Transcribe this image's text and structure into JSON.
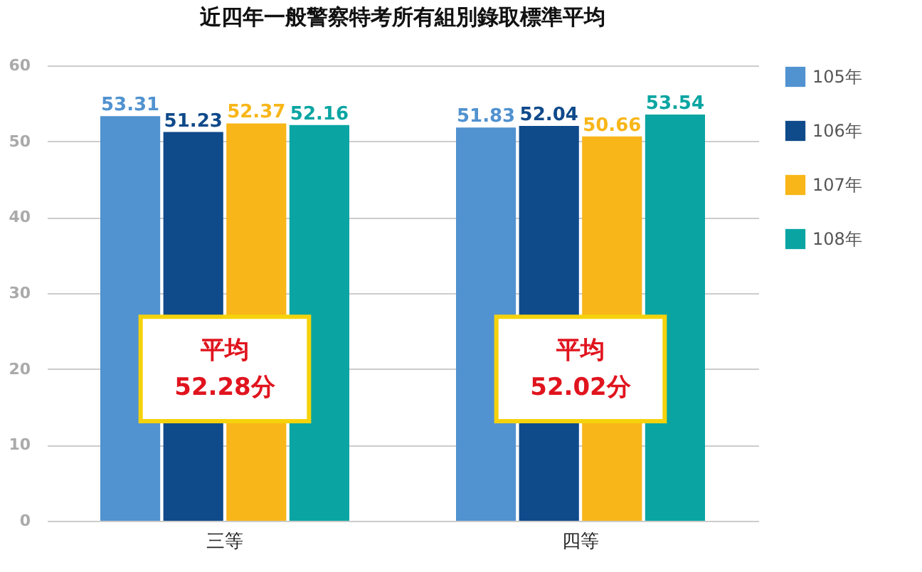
{
  "chart_data": {
    "type": "bar",
    "title": "近四年一般警察特考所有組別錄取標準平均",
    "categories": [
      "三等",
      "四等"
    ],
    "series": [
      {
        "name": "105年",
        "color": "#5192d0",
        "values": [
          53.31,
          51.83
        ]
      },
      {
        "name": "106年",
        "color": "#0f4a8a",
        "values": [
          51.23,
          52.04
        ]
      },
      {
        "name": "107年",
        "color": "#f8b619",
        "values": [
          52.37,
          50.66
        ]
      },
      {
        "name": "108年",
        "color": "#0aa5a2",
        "values": [
          52.16,
          53.54
        ]
      }
    ],
    "ylim": [
      0,
      60
    ],
    "yticks": [
      0,
      10,
      20,
      30,
      40,
      50,
      60
    ],
    "grid": "y",
    "legend": "right",
    "data_labels": true,
    "annotations": [
      {
        "text": "平均\n52.28分",
        "x": "三等",
        "y": 20
      },
      {
        "text": "平均\n52.02分",
        "x": "四等",
        "y": 20
      }
    ]
  }
}
